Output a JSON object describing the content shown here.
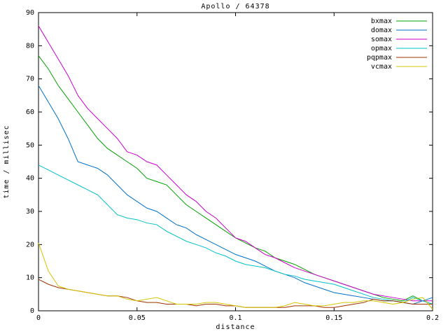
{
  "page": {
    "background": "#ffffff",
    "axis_color": "#000000",
    "text_color": "#000000"
  },
  "chart_data": {
    "type": "line",
    "title": "Apollo / 64378",
    "xlabel": "distance",
    "ylabel": "time / millisec",
    "xlim": [
      0,
      0.2
    ],
    "ylim": [
      0,
      90
    ],
    "xticks": [
      0,
      0.05,
      0.1,
      0.15,
      0.2
    ],
    "xtick_labels": [
      "0",
      "0.05",
      "0.1",
      "0.15",
      "0.2"
    ],
    "yticks": [
      0,
      10,
      20,
      30,
      40,
      50,
      60,
      70,
      80,
      90
    ],
    "ytick_labels": [
      "0",
      "10",
      "20",
      "30",
      "40",
      "50",
      "60",
      "70",
      "80",
      "90"
    ],
    "grid": false,
    "legend_position": "top-right",
    "x": [
      0,
      0.005,
      0.01,
      0.015,
      0.02,
      0.025,
      0.03,
      0.035,
      0.04,
      0.045,
      0.05,
      0.055,
      0.06,
      0.065,
      0.07,
      0.075,
      0.08,
      0.085,
      0.09,
      0.095,
      0.1,
      0.105,
      0.11,
      0.115,
      0.12,
      0.125,
      0.13,
      0.135,
      0.14,
      0.145,
      0.15,
      0.155,
      0.16,
      0.165,
      0.17,
      0.175,
      0.18,
      0.185,
      0.19,
      0.195,
      0.2
    ],
    "series": [
      {
        "name": "bxmax",
        "color": "#00a000",
        "values": [
          77,
          73,
          68,
          64,
          60,
          56,
          52,
          49,
          47,
          45,
          43,
          40,
          39,
          38,
          35,
          32,
          30,
          28,
          26,
          24,
          22,
          20.5,
          19,
          18,
          16,
          15,
          14,
          12.5,
          11,
          10,
          9,
          8,
          7,
          6,
          5,
          4,
          3.5,
          3,
          4.5,
          3,
          2
        ]
      },
      {
        "name": "domax",
        "color": "#0070c8",
        "values": [
          68,
          63,
          58,
          52,
          45,
          44,
          43,
          41,
          38,
          35,
          33,
          31,
          30,
          28,
          26,
          25,
          23,
          21.5,
          20,
          18.5,
          17,
          16,
          15,
          13.5,
          12,
          11,
          10,
          8.5,
          7.5,
          6.5,
          5.5,
          5,
          4.5,
          4,
          3.5,
          3,
          3,
          2.5,
          2,
          3,
          4
        ]
      },
      {
        "name": "somax",
        "color": "#cc00cc",
        "values": [
          86,
          81,
          76,
          71,
          65,
          61,
          58,
          55,
          52,
          48,
          47,
          45,
          44,
          41,
          38,
          35,
          33,
          30,
          28,
          25,
          22,
          21,
          19,
          17,
          16,
          14.5,
          13,
          12,
          11,
          10,
          9,
          8,
          7,
          6,
          5,
          4.5,
          4,
          3.5,
          3,
          3,
          3
        ]
      },
      {
        "name": "opmax",
        "color": "#00c0c8",
        "values": [
          44,
          42.5,
          41,
          39.5,
          38,
          36.5,
          35,
          32,
          29,
          28,
          27.5,
          26.5,
          26,
          24,
          22.5,
          21,
          20,
          19,
          17.5,
          16.5,
          15,
          14,
          13.5,
          13,
          12,
          11,
          10.5,
          9.5,
          9,
          8.5,
          8,
          7,
          6,
          5,
          4,
          3.5,
          3,
          2.5,
          4,
          3,
          2
        ]
      },
      {
        "name": "pqpmax",
        "color": "#a03000",
        "values": [
          9.5,
          8,
          7,
          6.5,
          6,
          5.5,
          5,
          4.5,
          4.5,
          4,
          3,
          2.5,
          2.5,
          2,
          2,
          2,
          1.5,
          2,
          2,
          1.5,
          1.5,
          1,
          1,
          1,
          1,
          1,
          1.5,
          1.5,
          1.5,
          1,
          1,
          1.5,
          2,
          2.5,
          3.5,
          3,
          3,
          2.5,
          2,
          2,
          2
        ]
      },
      {
        "name": "vcmax",
        "color": "#d6c400",
        "values": [
          20.5,
          12,
          7.5,
          6.5,
          6,
          5.5,
          5,
          4.5,
          4.5,
          3.5,
          3,
          3.5,
          4,
          3,
          2,
          2,
          2,
          2.5,
          2.5,
          2,
          1.5,
          1,
          1,
          1,
          1,
          1.5,
          2.5,
          2,
          1.5,
          1.5,
          2,
          2.5,
          2.5,
          3,
          3,
          2.5,
          2,
          2.5,
          3.5,
          4,
          0.5
        ]
      }
    ]
  }
}
